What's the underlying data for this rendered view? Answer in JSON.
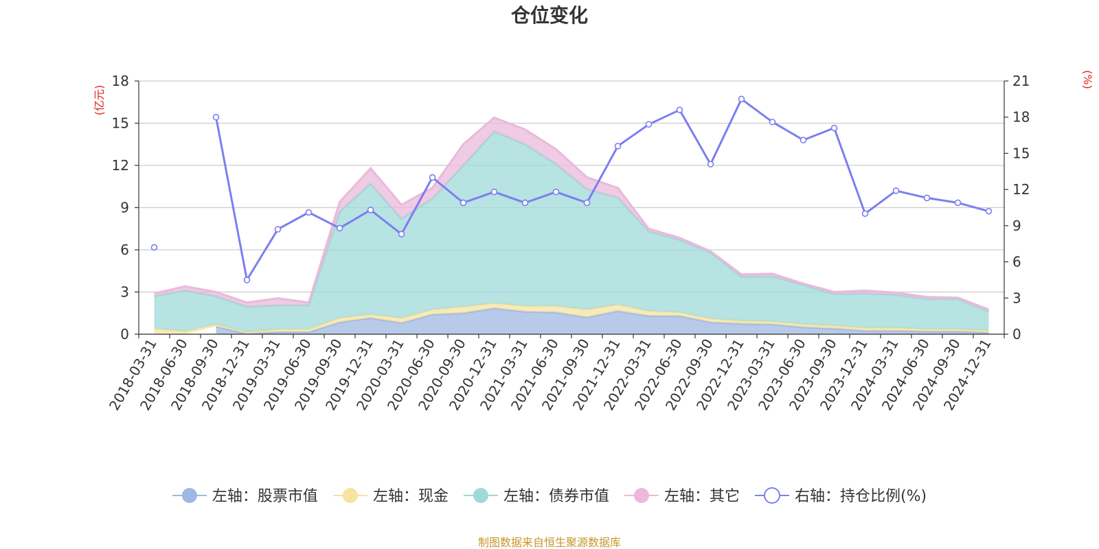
{
  "chart_data": {
    "type": "area",
    "title": "仓位变化",
    "left_unit": "(亿元)",
    "right_unit": "(%)",
    "categories": [
      "2018-03-31",
      "2018-06-30",
      "2018-09-30",
      "2018-12-31",
      "2019-03-31",
      "2019-06-30",
      "2019-09-30",
      "2019-12-31",
      "2020-03-31",
      "2020-06-30",
      "2020-09-30",
      "2020-12-31",
      "2021-03-31",
      "2021-06-30",
      "2021-09-30",
      "2021-12-31",
      "2022-03-31",
      "2022-06-30",
      "2022-09-30",
      "2022-12-31",
      "2023-03-31",
      "2023-06-30",
      "2023-09-30",
      "2023-12-31",
      "2024-03-31",
      "2024-06-30",
      "2024-09-30",
      "2024-12-31"
    ],
    "left_axis": {
      "min": 0,
      "max": 18,
      "ticks": [
        "0",
        "3",
        "6",
        "9",
        "12",
        "15",
        "18"
      ]
    },
    "right_axis": {
      "min": 0,
      "max": 21,
      "ticks": [
        "0",
        "3",
        "6",
        "9",
        "12",
        "15",
        "18",
        "21"
      ]
    },
    "stacked_series": [
      {
        "name": "左轴：股票市值",
        "color": "#9fb8e1",
        "values": [
          null,
          null,
          0.55,
          0.05,
          0.15,
          0.15,
          0.85,
          1.15,
          0.8,
          1.4,
          1.5,
          1.85,
          1.6,
          1.55,
          1.2,
          1.65,
          1.3,
          1.3,
          0.85,
          0.75,
          0.7,
          0.5,
          0.4,
          0.25,
          0.25,
          0.2,
          0.2,
          0.1
        ]
      },
      {
        "name": "左轴：现金",
        "color": "#f6e3a3",
        "values": [
          0.4,
          0.2,
          0.15,
          0.1,
          0.2,
          0.2,
          0.3,
          0.25,
          0.35,
          0.35,
          0.45,
          0.35,
          0.4,
          0.45,
          0.55,
          0.45,
          0.35,
          0.25,
          0.25,
          0.2,
          0.2,
          0.2,
          0.2,
          0.2,
          0.2,
          0.15,
          0.15,
          0.15
        ]
      },
      {
        "name": "左轴：债券市值",
        "color": "#9fd9d8",
        "values": [
          2.3,
          2.9,
          2.0,
          1.8,
          1.7,
          1.7,
          7.55,
          9.3,
          7.05,
          7.9,
          10.05,
          12.2,
          11.5,
          10.1,
          8.55,
          7.6,
          5.65,
          5.15,
          4.7,
          3.15,
          3.2,
          2.8,
          2.25,
          2.45,
          2.35,
          2.15,
          2.15,
          1.35
        ]
      },
      {
        "name": "左轴：其它",
        "color": "#eab9db",
        "values": [
          0.2,
          0.3,
          0.3,
          0.3,
          0.5,
          0.2,
          0.7,
          1.1,
          1.0,
          0.75,
          1.5,
          1.0,
          1.05,
          1.05,
          0.85,
          0.7,
          0.2,
          0.15,
          0.1,
          0.15,
          0.2,
          0.1,
          0.15,
          0.2,
          0.15,
          0.15,
          0.1,
          0.15
        ]
      }
    ],
    "line_series": {
      "name": "右轴：持仓比例(%)",
      "color": "#7b7ef0",
      "values": [
        7.2,
        null,
        18.0,
        4.5,
        8.7,
        10.1,
        8.8,
        10.3,
        8.3,
        13.0,
        10.9,
        11.8,
        10.9,
        11.8,
        10.9,
        15.6,
        17.4,
        18.6,
        14.1,
        19.5,
        17.6,
        16.1,
        17.1,
        10.0,
        11.9,
        11.3,
        10.9,
        10.2
      ]
    },
    "legend": {
      "placement": "bottom-center",
      "items": [
        {
          "label": "左轴：股票市值",
          "color": "#9fb8e1",
          "marker": "filled-circle"
        },
        {
          "label": "左轴：现金",
          "color": "#f6e3a3",
          "marker": "filled-circle"
        },
        {
          "label": "左轴：债券市值",
          "color": "#9fd9d8",
          "marker": "filled-circle"
        },
        {
          "label": "左轴：其它",
          "color": "#eab9db",
          "marker": "filled-circle"
        },
        {
          "label": "右轴：持仓比例(%)",
          "color": "#7b7ef0",
          "marker": "hollow-circle"
        }
      ]
    },
    "grid": true,
    "source": "制图数据来自恒生聚源数据库"
  },
  "colors": {
    "unit_label": "#e0201b",
    "source_text": "#c8962b",
    "grid": "#cccccc",
    "axis": "#333333"
  }
}
